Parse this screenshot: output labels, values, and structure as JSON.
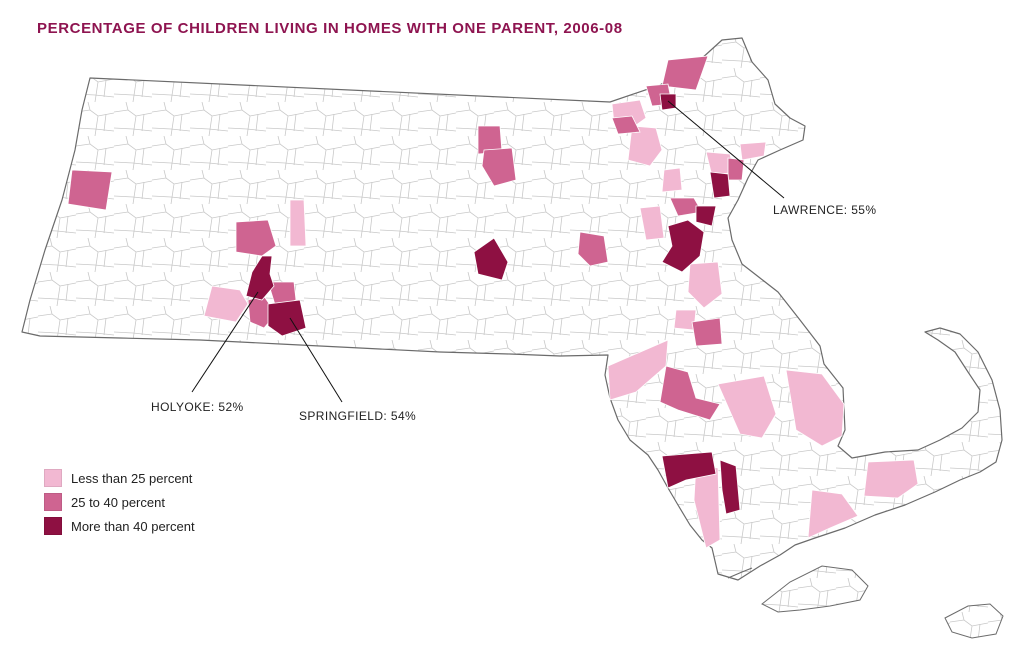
{
  "title": "PERCENTAGE OF CHILDREN LIVING IN HOMES WITH ONE PARENT, 2006-08",
  "colors": {
    "title": "#8e1450",
    "outline": "#6b6b6b",
    "town_lines": "#c8c8c8",
    "low": "#f2b8d2",
    "mid": "#cf6491",
    "high": "#8e1042"
  },
  "callouts": {
    "lawrence": "LAWRENCE: 55%",
    "holyoke": "HOLYOKE: 52%",
    "springfield": "SPRINGFIELD: 54%"
  },
  "legend": [
    {
      "label": "Less than 25 percent",
      "class": "low"
    },
    {
      "label": "25 to 40 percent",
      "class": "mid"
    },
    {
      "label": "More than 40 percent",
      "class": "high"
    }
  ]
}
